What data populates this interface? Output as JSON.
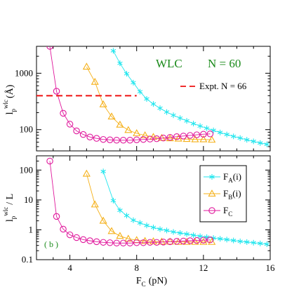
{
  "chart_data": [
    {
      "type": "line",
      "panel": "top",
      "yscale": "log",
      "xlim": [
        2,
        16
      ],
      "ylim": [
        42,
        3000
      ],
      "ylabel": {
        "main": "l",
        "sub": "p",
        "sup": "wlc",
        "tail": "(Å)"
      },
      "yticks": [
        "100",
        "1000"
      ],
      "annotation": {
        "left": "WLC",
        "right": "N = 60"
      },
      "hline": {
        "label": "Expt.  N = 66",
        "value": 400,
        "xrange": [
          2,
          8
        ],
        "color": "#ee1111"
      },
      "series": [
        {
          "key": "FA",
          "color": "#22e6ee",
          "marker": "asterisk",
          "x": [
            6.6,
            7.0,
            7.4,
            7.8,
            8.2,
            8.6,
            9.0,
            9.4,
            9.8,
            10.2,
            10.6,
            11.0,
            11.4,
            11.8,
            12.2,
            12.6,
            13.0,
            13.4,
            13.8,
            14.2,
            14.6,
            15.0,
            15.4,
            15.8
          ],
          "y": [
            2500,
            1500,
            980,
            680,
            470,
            350,
            285,
            240,
            205,
            180,
            160,
            143,
            128,
            116,
            106,
            97,
            89,
            82,
            76,
            71,
            66,
            62,
            58,
            55
          ]
        },
        {
          "key": "FB",
          "color": "#f5b019",
          "marker": "triangle",
          "x": [
            5.0,
            5.5,
            6.0,
            6.5,
            7.0,
            7.5,
            8.0,
            8.5,
            9.0,
            9.5,
            10.0,
            10.5,
            11.0,
            11.5,
            12.0,
            12.5
          ],
          "y": [
            1300,
            700,
            280,
            170,
            122,
            98,
            86,
            79,
            74,
            71,
            70,
            69,
            68,
            67,
            67,
            66
          ]
        },
        {
          "key": "FC",
          "color": "#e0189c",
          "marker": "circle",
          "x": [
            2.8,
            3.2,
            3.6,
            4.0,
            4.4,
            4.8,
            5.2,
            5.6,
            6.0,
            6.4,
            6.8,
            7.2,
            7.6,
            8.0,
            8.4,
            8.8,
            9.2,
            9.6,
            10.0,
            10.4,
            10.8,
            11.2,
            11.6,
            12.0,
            12.4
          ],
          "y": [
            3000,
            480,
            195,
            125,
            95,
            82,
            74,
            70,
            67,
            66,
            65,
            65,
            65,
            66,
            67,
            68,
            69,
            71,
            73,
            75,
            77,
            79,
            81,
            83,
            84
          ]
        }
      ]
    },
    {
      "type": "line",
      "panel": "bottom",
      "yscale": "log",
      "xlim": [
        2,
        16
      ],
      "ylim": [
        0.1,
        300
      ],
      "xlabel": {
        "main": "F",
        "sub": "C",
        "tail": "(pN)"
      },
      "ylabel": {
        "main": "l",
        "sub": "p",
        "sup": "wlc",
        "tail": "/ L"
      },
      "xticks": [
        "4",
        "8",
        "12",
        "16"
      ],
      "yticks": [
        "0.1",
        "1",
        "10",
        "100"
      ],
      "annotation": "( b )",
      "legend": [
        {
          "key": "FA",
          "main": "F",
          "sub": "A",
          "tail": "(i)"
        },
        {
          "key": "FB",
          "main": "F",
          "sub": "B",
          "tail": "(i)"
        },
        {
          "key": "FC",
          "main": "F",
          "sub": "C",
          "tail": ""
        }
      ],
      "series": [
        {
          "key": "FA",
          "color": "#22e6ee",
          "marker": "asterisk",
          "x": [
            6.0,
            6.6,
            7.0,
            7.4,
            7.8,
            8.2,
            8.6,
            9.0,
            9.4,
            9.8,
            10.2,
            10.6,
            11.0,
            11.4,
            11.8,
            12.2,
            12.6,
            13.0,
            13.4,
            13.8,
            14.2,
            14.6,
            15.0,
            15.4,
            15.8
          ],
          "y": [
            90,
            9.5,
            4.5,
            3.0,
            2.1,
            1.7,
            1.4,
            1.2,
            1.05,
            0.95,
            0.85,
            0.78,
            0.72,
            0.66,
            0.61,
            0.57,
            0.53,
            0.5,
            0.47,
            0.44,
            0.41,
            0.39,
            0.37,
            0.35,
            0.33
          ]
        },
        {
          "key": "FB",
          "color": "#f5b019",
          "marker": "triangle",
          "x": [
            5.0,
            5.5,
            6.0,
            6.5,
            7.0,
            7.5,
            8.0,
            8.5,
            9.0,
            9.5,
            10.0,
            10.5,
            11.0,
            11.5,
            12.0,
            12.5
          ],
          "y": [
            75,
            7.0,
            2.0,
            0.9,
            0.62,
            0.5,
            0.45,
            0.42,
            0.41,
            0.4,
            0.4,
            0.39,
            0.39,
            0.39,
            0.39,
            0.39
          ]
        },
        {
          "key": "FC",
          "color": "#e0189c",
          "marker": "circle",
          "x": [
            2.8,
            3.2,
            3.6,
            4.0,
            4.4,
            4.8,
            5.2,
            5.6,
            6.0,
            6.4,
            6.8,
            7.2,
            7.6,
            8.0,
            8.4,
            8.8,
            9.2,
            9.6,
            10.0,
            10.4,
            10.8,
            11.2,
            11.6,
            12.0,
            12.4
          ],
          "y": [
            200,
            2.8,
            1.05,
            0.68,
            0.55,
            0.47,
            0.43,
            0.4,
            0.38,
            0.37,
            0.36,
            0.36,
            0.36,
            0.37,
            0.37,
            0.38,
            0.38,
            0.39,
            0.4,
            0.41,
            0.42,
            0.43,
            0.44,
            0.45,
            0.46
          ]
        }
      ]
    }
  ]
}
